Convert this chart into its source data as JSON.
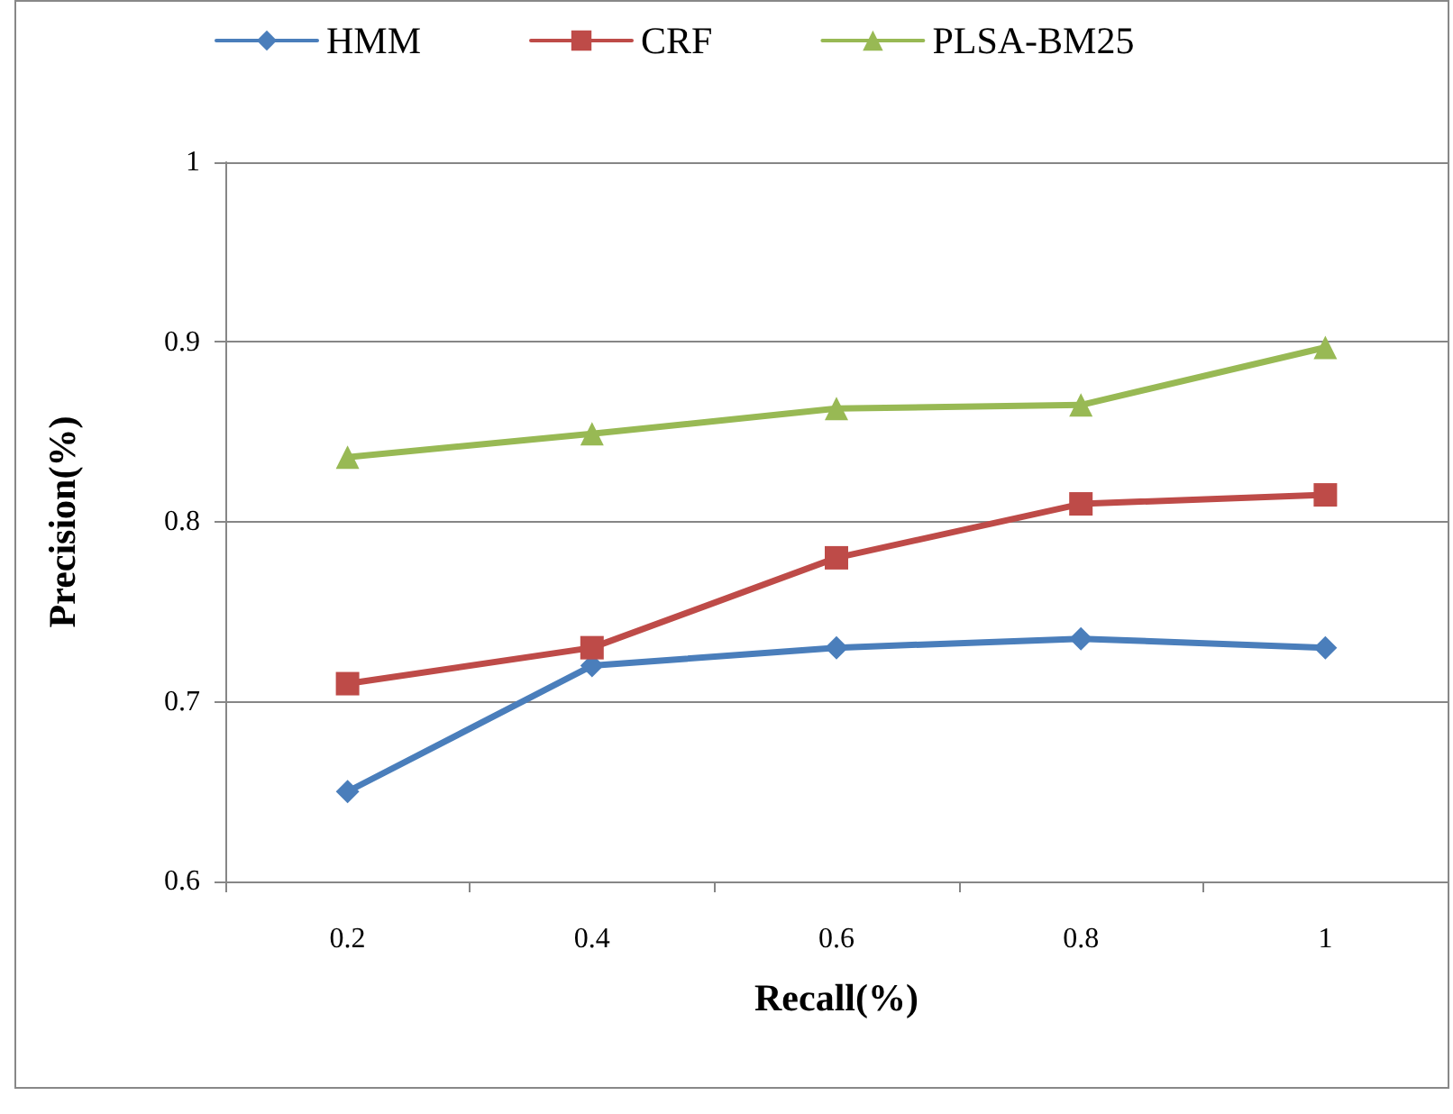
{
  "chart_data": {
    "type": "line",
    "xlabel": "Recall(%)",
    "ylabel": "Precision(%)",
    "categories": [
      "0.2",
      "0.4",
      "0.6",
      "0.8",
      "1"
    ],
    "series": [
      {
        "name": "HMM",
        "color": "#4a7ebb",
        "marker": "diamond",
        "values": [
          0.65,
          0.72,
          0.73,
          0.735,
          0.73
        ]
      },
      {
        "name": "CRF",
        "color": "#be4b48",
        "marker": "square",
        "values": [
          0.71,
          0.73,
          0.78,
          0.81,
          0.815
        ]
      },
      {
        "name": "PLSA-BM25",
        "color": "#98b954",
        "marker": "triangle",
        "values": [
          0.836,
          0.849,
          0.863,
          0.865,
          0.897
        ]
      }
    ],
    "ylim": [
      0.6,
      1
    ],
    "yticks": [
      0.6,
      0.7,
      0.8,
      0.9,
      1
    ],
    "grid": "y",
    "legend": "top",
    "line_style": "solid"
  }
}
